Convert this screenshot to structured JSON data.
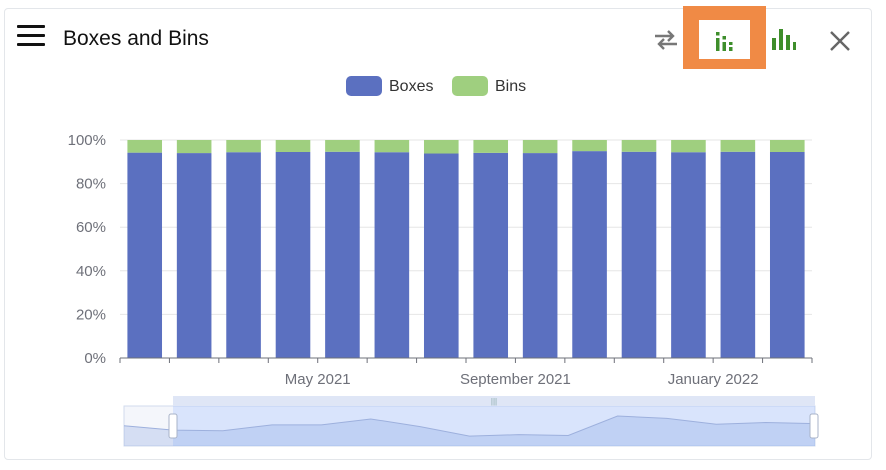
{
  "header": {
    "title": "Boxes and Bins",
    "icons": {
      "menu": "hamburger-menu-icon",
      "swap": "swap-arrows-icon",
      "stacked": "stacked-bar-chart-icon",
      "bar": "bar-chart-icon",
      "close": "close-icon"
    }
  },
  "colors": {
    "boxes": "#5b70c0",
    "bins": "#9fcf7f",
    "accent_icon": "#3e8e2b",
    "highlight": "#f08a45"
  },
  "chart_data": {
    "type": "bar",
    "stacked": true,
    "percent": true,
    "series": [
      {
        "name": "Boxes",
        "values": [
          94.2,
          94.0,
          94.4,
          94.5,
          94.6,
          94.4,
          93.8,
          94.1,
          94.0,
          94.9,
          94.6,
          94.4,
          94.6,
          94.5
        ]
      },
      {
        "name": "Bins",
        "values": [
          5.8,
          6.0,
          5.6,
          5.5,
          5.4,
          5.6,
          6.2,
          5.9,
          6.0,
          5.1,
          5.4,
          5.6,
          5.4,
          5.5
        ]
      }
    ],
    "ylim": [
      0,
      100
    ],
    "yticks": [
      "0%",
      "20%",
      "40%",
      "60%",
      "80%",
      "100%"
    ],
    "xtick_labels": [
      {
        "label": "May 2021",
        "index": 3
      },
      {
        "label": "September 2021",
        "index": 7
      },
      {
        "label": "January 2022",
        "index": 11
      }
    ],
    "legend": {
      "position": "top-center"
    },
    "grid": true,
    "zoom_slider": {
      "overview_values": [
        55,
        40,
        38,
        58,
        58,
        78,
        52,
        20,
        25,
        22,
        88,
        80,
        60,
        66,
        62
      ]
    }
  }
}
